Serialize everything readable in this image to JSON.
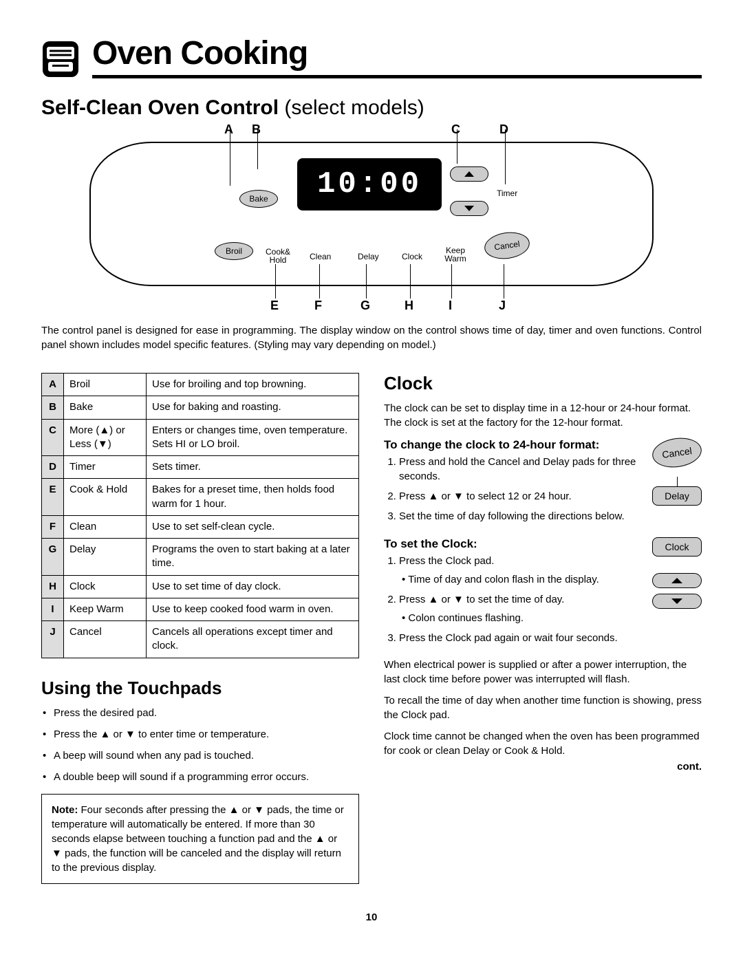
{
  "page_title": "Oven Cooking",
  "subheading_bold": "Self-Clean Oven Control",
  "subheading_light": " (select models)",
  "display_time": "10:00",
  "panel_labels": {
    "bake": "Bake",
    "broil": "Broil",
    "cookhold": "Cook&\nHold",
    "clean": "Clean",
    "delay": "Delay",
    "clock": "Clock",
    "keepwarm": "Keep\nWarm",
    "timer": "Timer",
    "cancel": "Cancel"
  },
  "top_letters": {
    "A": "A",
    "B": "B",
    "C": "C",
    "D": "D"
  },
  "bottom_letters": {
    "E": "E",
    "F": "F",
    "G": "G",
    "H": "H",
    "I": "I",
    "J": "J"
  },
  "caption": "The control panel is designed for ease in programming. The display window on the control shows time of day, timer and oven functions. Control panel shown includes model specific features. (Styling may vary depending on model.)",
  "table": [
    {
      "k": "A",
      "n": "Broil",
      "d": "Use for broiling and top browning."
    },
    {
      "k": "B",
      "n": "Bake",
      "d": "Use for baking and roasting."
    },
    {
      "k": "C",
      "n": "More (▲) or Less (▼)",
      "d": "Enters or changes time, oven temperature. Sets HI or LO broil."
    },
    {
      "k": "D",
      "n": "Timer",
      "d": "Sets timer."
    },
    {
      "k": "E",
      "n": "Cook & Hold",
      "d": "Bakes for a preset time, then holds food warm for 1 hour."
    },
    {
      "k": "F",
      "n": "Clean",
      "d": "Use to set self-clean cycle."
    },
    {
      "k": "G",
      "n": "Delay",
      "d": "Programs the oven to start baking at a later time."
    },
    {
      "k": "H",
      "n": "Clock",
      "d": "Use to set time of day clock."
    },
    {
      "k": "I",
      "n": "Keep Warm",
      "d": "Use to keep cooked food warm in oven."
    },
    {
      "k": "J",
      "n": "Cancel",
      "d": "Cancels all operations except timer and clock."
    }
  ],
  "using_heading": "Using the Touchpads",
  "using_bullets": [
    "Press the desired pad.",
    "Press the ▲ or ▼ to enter time or temperature.",
    "A beep will sound when any pad is touched.",
    "A double beep will sound if a programming error occurs."
  ],
  "note_label": "Note:",
  "note_text": "  Four seconds after pressing the ▲ or ▼ pads, the time or temperature will automatically be entered. If more than 30 seconds elapse between touching a function pad and the ▲ or ▼ pads, the function will be canceled and the display will return to the previous display.",
  "clock_heading": "Clock",
  "clock_intro": "The clock can be set to display time in a 12-hour or 24-hour format. The clock is set at the factory for the 12-hour format.",
  "sub1": "To change the clock to 24-hour format:",
  "sub1_list": [
    "Press and hold the Cancel and Delay pads for three seconds.",
    "Press ▲ or ▼ to select 12 or 24 hour.",
    "Set the time of day following the directions below."
  ],
  "sub2": "To set the Clock:",
  "sub2_item1": "Press the Clock pad.",
  "sub2_item1_sub": "Time of day and colon flash in the display.",
  "sub2_item2": "Press ▲ or ▼ to set the time of day.",
  "sub2_item2_sub": "Colon continues flashing.",
  "sub2_item3": "Press the Clock pad again or wait four seconds.",
  "para1": "When electrical power is supplied or after a power interruption, the last clock time before power was interrupted will flash.",
  "para2": "To recall the time of day when another time function is showing, press the Clock pad.",
  "para3": "Clock time cannot be changed when the oven has been programmed for cook or clean Delay or Cook & Hold.",
  "cont": "cont.",
  "illus": {
    "cancel": "Cancel",
    "delay": "Delay",
    "clock": "Clock"
  },
  "pagenum": "10"
}
